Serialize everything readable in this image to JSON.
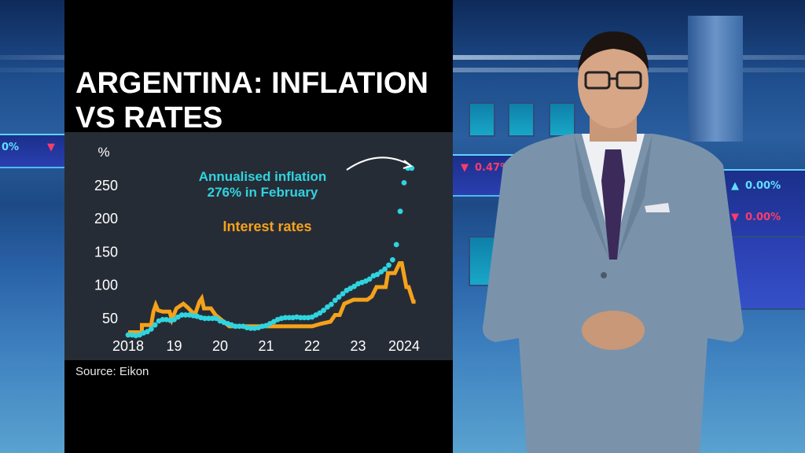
{
  "headline": {
    "line1": "ARGENTINA: INFLATION",
    "line2": "VS RATES"
  },
  "source": "Source: Eikon",
  "annotations": {
    "inflation_line1": "Annualised inflation",
    "inflation_line2": "276% in February",
    "rates_label": "Interest rates"
  },
  "colors": {
    "inflation": "#2fd4e0",
    "rates": "#f5a21b",
    "chart_bg": "#262c36",
    "panel_bg": "#000000",
    "text": "#ffffff"
  },
  "background": {
    "ticker_left_value": "0.47%",
    "ticker_right_top": "0.00%",
    "ticker_right_bottom": "0.00%",
    "ticker_far_left": "0%"
  },
  "chart_data": {
    "type": "line",
    "title": "ARGENTINA: INFLATION VS RATES",
    "xlabel": "",
    "ylabel": "%",
    "yticks": [
      50,
      100,
      150,
      200,
      250
    ],
    "xticks": [
      "2018",
      "19",
      "20",
      "21",
      "22",
      "23",
      "2024"
    ],
    "ylim": [
      20,
      285
    ],
    "xlim": [
      2018.0,
      2024.3
    ],
    "grid": false,
    "legend": "inline annotations",
    "series": [
      {
        "name": "Annualised inflation",
        "style": "dotted",
        "x": [
          2018.0,
          2018.083,
          2018.167,
          2018.25,
          2018.333,
          2018.417,
          2018.5,
          2018.583,
          2018.667,
          2018.75,
          2018.833,
          2018.917,
          2019.0,
          2019.083,
          2019.167,
          2019.25,
          2019.333,
          2019.417,
          2019.5,
          2019.583,
          2019.667,
          2019.75,
          2019.833,
          2019.917,
          2020.0,
          2020.083,
          2020.167,
          2020.25,
          2020.333,
          2020.417,
          2020.5,
          2020.583,
          2020.667,
          2020.75,
          2020.833,
          2020.917,
          2021.0,
          2021.083,
          2021.167,
          2021.25,
          2021.333,
          2021.417,
          2021.5,
          2021.583,
          2021.667,
          2021.75,
          2021.833,
          2021.917,
          2022.0,
          2022.083,
          2022.167,
          2022.25,
          2022.333,
          2022.417,
          2022.5,
          2022.583,
          2022.667,
          2022.75,
          2022.833,
          2022.917,
          2023.0,
          2023.083,
          2023.167,
          2023.25,
          2023.333,
          2023.417,
          2023.5,
          2023.583,
          2023.667,
          2023.75,
          2023.833,
          2023.917,
          2024.0,
          2024.083,
          2024.167
        ],
        "values": [
          25,
          25,
          24,
          25,
          28,
          30,
          34,
          40,
          46,
          48,
          48,
          47,
          48,
          52,
          55,
          55,
          55,
          54,
          53,
          51,
          50,
          50,
          50,
          50,
          46,
          44,
          42,
          40,
          38,
          38,
          38,
          36,
          35,
          35,
          36,
          38,
          39,
          42,
          45,
          48,
          50,
          51,
          51,
          51,
          52,
          51,
          51,
          51,
          52,
          55,
          58,
          62,
          67,
          71,
          77,
          82,
          87,
          92,
          95,
          98,
          102,
          104,
          106,
          109,
          114,
          116,
          120,
          124,
          130,
          138,
          161,
          211,
          254,
          276,
          276
        ]
      },
      {
        "name": "Interest rates",
        "style": "solid-step",
        "x": [
          2018.0,
          2018.3,
          2018.3,
          2018.5,
          2018.55,
          2018.6,
          2018.65,
          2018.75,
          2018.9,
          2018.95,
          2019.05,
          2019.2,
          2019.3,
          2019.45,
          2019.55,
          2019.6,
          2019.65,
          2019.8,
          2019.9,
          2020.2,
          2020.5,
          2021.0,
          2021.5,
          2022.0,
          2022.2,
          2022.4,
          2022.5,
          2022.6,
          2022.7,
          2022.9,
          2023.2,
          2023.3,
          2023.4,
          2023.6,
          2023.65,
          2023.8,
          2023.9,
          2023.95,
          2024.05,
          2024.1,
          2024.2,
          2024.25
        ],
        "values": [
          29,
          29,
          40,
          40,
          60,
          70,
          62,
          60,
          60,
          48,
          65,
          72,
          66,
          55,
          75,
          80,
          65,
          65,
          55,
          38,
          38,
          38,
          38,
          38,
          42,
          45,
          55,
          55,
          72,
          78,
          78,
          83,
          97,
          97,
          118,
          118,
          133,
          133,
          97,
          97,
          75,
          75
        ]
      }
    ],
    "annotations": [
      {
        "text": "Annualised inflation 276% in February",
        "color": "#2fd4e0",
        "arrow_to": [
          2024.083,
          276
        ]
      },
      {
        "text": "Interest rates",
        "color": "#f5a21b"
      }
    ],
    "source": "Source: Eikon"
  }
}
